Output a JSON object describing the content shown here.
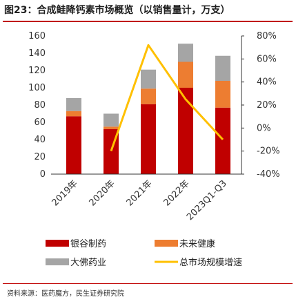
{
  "title": "图23：合成鲑降钙素市场概览（以销售量计，万支）",
  "source": "资料来源：医药魔方，民生证券研究院",
  "chart_data": {
    "type": "bar",
    "stacked": true,
    "categories": [
      "2019年",
      "2020年",
      "2021年",
      "2022年",
      "2023Q1-Q3"
    ],
    "series": [
      {
        "name": "银谷制药",
        "type": "bar",
        "color": "#c00000",
        "values": [
          67,
          52,
          81,
          100,
          77
        ]
      },
      {
        "name": "未来健康",
        "type": "bar",
        "color": "#ed7d31",
        "values": [
          6,
          3,
          18,
          30,
          31
        ]
      },
      {
        "name": "大佛药业",
        "type": "bar",
        "color": "#a5a5a5",
        "values": [
          15,
          15,
          22,
          21,
          29
        ]
      },
      {
        "name": "总市场规模增速",
        "type": "line",
        "axis": "right",
        "color": "#ffc000",
        "values": [
          null,
          -20,
          72,
          25,
          -10
        ]
      }
    ],
    "left_axis": {
      "min": 0,
      "max": 160,
      "ticks": [
        0,
        20,
        40,
        60,
        80,
        100,
        120,
        140,
        160
      ]
    },
    "right_axis": {
      "min": -40,
      "max": 80,
      "ticks": [
        "-40%",
        "-20%",
        "0%",
        "20%",
        "40%",
        "60%",
        "80%"
      ]
    },
    "legend_placement": "bottom"
  }
}
